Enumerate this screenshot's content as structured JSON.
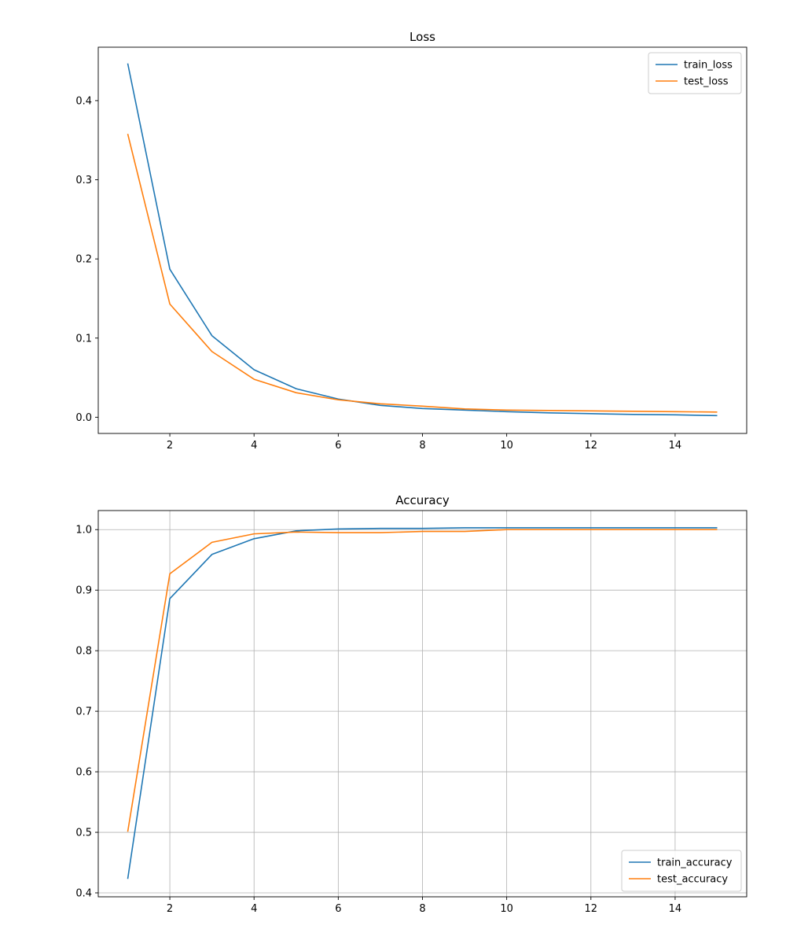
{
  "chart_data": [
    {
      "type": "line",
      "title": "Loss",
      "xlabel": "",
      "ylabel": "",
      "grid": false,
      "legend_position": "upper-right",
      "xlim": [
        0.3,
        15.7
      ],
      "ylim": [
        -0.0205,
        0.4675
      ],
      "xticks": [
        2,
        4,
        6,
        8,
        10,
        12,
        14
      ],
      "yticks": [
        0.0,
        0.1,
        0.2,
        0.3,
        0.4
      ],
      "tick_decimals": 1,
      "x": [
        1,
        2,
        3,
        4,
        5,
        6,
        7,
        8,
        9,
        10,
        11,
        12,
        13,
        14,
        15
      ],
      "series": [
        {
          "name": "train_loss",
          "color": "#1f77b4",
          "values": [
            0.447,
            0.187,
            0.103,
            0.06,
            0.036,
            0.023,
            0.015,
            0.011,
            0.009,
            0.007,
            0.0055,
            0.0045,
            0.0035,
            0.003,
            0.002
          ]
        },
        {
          "name": "test_loss",
          "color": "#ff7f0e",
          "values": [
            0.358,
            0.143,
            0.083,
            0.048,
            0.031,
            0.022,
            0.017,
            0.014,
            0.0105,
            0.009,
            0.0085,
            0.008,
            0.0075,
            0.007,
            0.0065
          ]
        }
      ]
    },
    {
      "type": "line",
      "title": "Accuracy",
      "xlabel": "",
      "ylabel": "",
      "grid": true,
      "legend_position": "lower-right",
      "xlim": [
        0.3,
        15.7
      ],
      "ylim": [
        0.3935,
        1.0315
      ],
      "xticks": [
        2,
        4,
        6,
        8,
        10,
        12,
        14
      ],
      "yticks": [
        0.4,
        0.5,
        0.6,
        0.7,
        0.8,
        0.9,
        1.0
      ],
      "tick_decimals": 1,
      "x": [
        1,
        2,
        3,
        4,
        5,
        6,
        7,
        8,
        9,
        10,
        11,
        12,
        13,
        14,
        15
      ],
      "series": [
        {
          "name": "train_accuracy",
          "color": "#1f77b4",
          "values": [
            0.423,
            0.886,
            0.959,
            0.985,
            0.998,
            1.001,
            1.002,
            1.002,
            1.003,
            1.003,
            1.003,
            1.003,
            1.003,
            1.003,
            1.003
          ]
        },
        {
          "name": "test_accuracy",
          "color": "#ff7f0e",
          "values": [
            0.501,
            0.927,
            0.979,
            0.993,
            0.996,
            0.995,
            0.995,
            0.997,
            0.997,
            1.0,
            1.0,
            1.0,
            1.0,
            1.0,
            1.0
          ]
        }
      ]
    }
  ]
}
